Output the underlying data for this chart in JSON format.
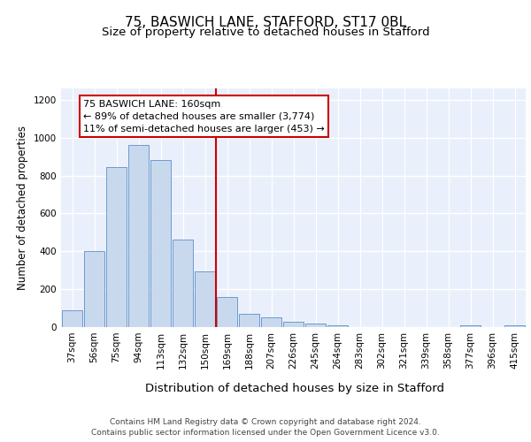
{
  "title": "75, BASWICH LANE, STAFFORD, ST17 0BL",
  "subtitle": "Size of property relative to detached houses in Stafford",
  "xlabel": "Distribution of detached houses by size in Stafford",
  "ylabel": "Number of detached properties",
  "categories": [
    "37sqm",
    "56sqm",
    "75sqm",
    "94sqm",
    "113sqm",
    "132sqm",
    "150sqm",
    "169sqm",
    "188sqm",
    "207sqm",
    "226sqm",
    "245sqm",
    "264sqm",
    "283sqm",
    "302sqm",
    "321sqm",
    "339sqm",
    "358sqm",
    "377sqm",
    "396sqm",
    "415sqm"
  ],
  "values": [
    90,
    400,
    845,
    960,
    880,
    460,
    295,
    160,
    70,
    50,
    30,
    20,
    10,
    0,
    0,
    0,
    0,
    0,
    10,
    0,
    10
  ],
  "bar_color": "#c9d9ed",
  "bar_edge_color": "#5b8fc9",
  "background_color": "#eaf0fb",
  "grid_color": "#ffffff",
  "vline_color": "#cc0000",
  "annotation_text": "75 BASWICH LANE: 160sqm\n← 89% of detached houses are smaller (3,774)\n11% of semi-detached houses are larger (453) →",
  "annotation_box_color": "#ffffff",
  "annotation_box_edge": "#cc0000",
  "ylim": [
    0,
    1260
  ],
  "yticks": [
    0,
    200,
    400,
    600,
    800,
    1000,
    1200
  ],
  "footer_text": "Contains HM Land Registry data © Crown copyright and database right 2024.\nContains public sector information licensed under the Open Government Licence v3.0.",
  "title_fontsize": 11,
  "subtitle_fontsize": 9.5,
  "xlabel_fontsize": 9.5,
  "ylabel_fontsize": 8.5,
  "tick_fontsize": 7.5,
  "footer_fontsize": 6.5
}
